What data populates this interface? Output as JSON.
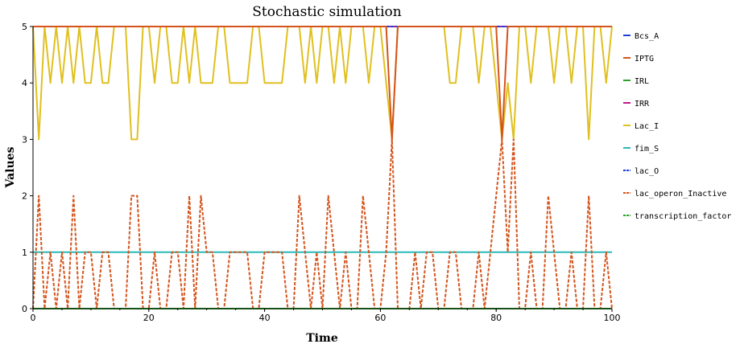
{
  "chart_data": {
    "type": "line",
    "title": "Stochastic simulation",
    "xlabel": "Time",
    "ylabel": "Values",
    "xlim": [
      0,
      100
    ],
    "ylim": [
      0,
      5
    ],
    "xticks": [
      0,
      20,
      40,
      60,
      80,
      100
    ],
    "yticks": [
      0,
      1,
      2,
      3,
      4,
      5
    ],
    "grid": false,
    "legend_position": "right",
    "x": [
      0,
      1,
      2,
      3,
      4,
      5,
      6,
      7,
      8,
      9,
      10,
      11,
      12,
      13,
      14,
      15,
      16,
      17,
      18,
      19,
      20,
      21,
      22,
      23,
      24,
      25,
      26,
      27,
      28,
      29,
      30,
      31,
      32,
      33,
      34,
      35,
      36,
      37,
      38,
      39,
      40,
      41,
      42,
      43,
      44,
      45,
      46,
      47,
      48,
      49,
      50,
      51,
      52,
      53,
      54,
      55,
      56,
      57,
      58,
      59,
      60,
      61,
      62,
      63,
      64,
      65,
      66,
      67,
      68,
      69,
      70,
      71,
      72,
      73,
      74,
      75,
      76,
      77,
      78,
      79,
      80,
      81,
      82,
      83,
      84,
      85,
      86,
      87,
      88,
      89,
      90,
      91,
      92,
      93,
      94,
      95,
      96,
      97,
      98,
      99,
      100
    ],
    "series": [
      {
        "name": "Bcs_A",
        "color": "#1f3fd6",
        "dash": "solid",
        "values": [
          5,
          5,
          5,
          5,
          5,
          5,
          5,
          5,
          5,
          5,
          5,
          5,
          5,
          5,
          5,
          5,
          5,
          5,
          5,
          5,
          5,
          5,
          5,
          5,
          5,
          5,
          5,
          5,
          5,
          5,
          5,
          5,
          5,
          5,
          5,
          5,
          5,
          5,
          5,
          5,
          5,
          5,
          5,
          5,
          5,
          5,
          5,
          5,
          5,
          5,
          5,
          5,
          5,
          5,
          5,
          5,
          5,
          5,
          5,
          5,
          5,
          5,
          5,
          5,
          5,
          5,
          5,
          5,
          5,
          5,
          5,
          5,
          5,
          5,
          5,
          5,
          5,
          5,
          5,
          5,
          5,
          5,
          5,
          5,
          5,
          5,
          5,
          5,
          5,
          5,
          5,
          5,
          5,
          5,
          5,
          5,
          5,
          5,
          5,
          5,
          5
        ]
      },
      {
        "name": "IPTG",
        "color": "#d4541c",
        "dash": "solid",
        "values": [
          5,
          5,
          5,
          5,
          5,
          5,
          5,
          5,
          5,
          5,
          5,
          5,
          5,
          5,
          5,
          5,
          5,
          5,
          5,
          5,
          5,
          5,
          5,
          5,
          5,
          5,
          5,
          5,
          5,
          5,
          5,
          5,
          5,
          5,
          5,
          5,
          5,
          5,
          5,
          5,
          5,
          5,
          5,
          5,
          5,
          5,
          5,
          5,
          5,
          5,
          5,
          5,
          5,
          5,
          5,
          5,
          5,
          5,
          5,
          5,
          5,
          5,
          3,
          5,
          5,
          5,
          5,
          5,
          5,
          5,
          5,
          5,
          5,
          5,
          5,
          5,
          5,
          5,
          5,
          5,
          5,
          3,
          5,
          5,
          5,
          5,
          5,
          5,
          5,
          5,
          5,
          5,
          5,
          5,
          5,
          5,
          5,
          5,
          5,
          5,
          5
        ]
      },
      {
        "name": "IRL",
        "color": "#2ca02c",
        "dash": "solid",
        "values": [
          0,
          0,
          0,
          0,
          0,
          0,
          0,
          0,
          0,
          0,
          0,
          0,
          0,
          0,
          0,
          0,
          0,
          0,
          0,
          0,
          0,
          0,
          0,
          0,
          0,
          0,
          0,
          0,
          0,
          0,
          0,
          0,
          0,
          0,
          0,
          0,
          0,
          0,
          0,
          0,
          0,
          0,
          0,
          0,
          0,
          0,
          0,
          0,
          0,
          0,
          0,
          0,
          0,
          0,
          0,
          0,
          0,
          0,
          0,
          0,
          0,
          0,
          0,
          0,
          0,
          0,
          0,
          0,
          0,
          0,
          0,
          0,
          0,
          0,
          0,
          0,
          0,
          0,
          0,
          0,
          0,
          0,
          0,
          0,
          0,
          0,
          0,
          0,
          0,
          0,
          0,
          0,
          0,
          0,
          0,
          0,
          0,
          0,
          0,
          0,
          0
        ]
      },
      {
        "name": "IRR",
        "color": "#c2188f",
        "dash": "solid",
        "values": [
          5,
          5,
          5,
          5,
          5,
          5,
          5,
          5,
          5,
          5,
          5,
          5,
          5,
          5,
          5,
          5,
          5,
          5,
          5,
          5,
          5,
          5,
          5,
          5,
          5,
          5,
          5,
          5,
          5,
          5,
          5,
          5,
          5,
          5,
          5,
          5,
          5,
          5,
          5,
          5,
          5,
          5,
          5,
          5,
          5,
          5,
          5,
          5,
          5,
          5,
          5,
          5,
          5,
          5,
          5,
          5,
          5,
          5,
          5,
          5,
          5,
          5,
          5,
          5,
          5,
          5,
          5,
          5,
          5,
          5,
          5,
          5,
          5,
          5,
          5,
          5,
          5,
          5,
          5,
          5,
          5,
          5,
          5,
          5,
          5,
          5,
          5,
          5,
          5,
          5,
          5,
          5,
          5,
          5,
          5,
          5,
          5,
          5,
          5,
          5,
          5
        ]
      },
      {
        "name": "Lac_I",
        "color": "#e0c020",
        "dash": "solid",
        "values": [
          5,
          3,
          5,
          4,
          5,
          4,
          5,
          4,
          5,
          4,
          4,
          5,
          4,
          4,
          5,
          5,
          5,
          3,
          3,
          5,
          5,
          4,
          5,
          5,
          4,
          4,
          5,
          4,
          5,
          4,
          4,
          4,
          5,
          5,
          4,
          4,
          4,
          4,
          5,
          5,
          4,
          4,
          4,
          4,
          5,
          5,
          5,
          4,
          5,
          4,
          5,
          5,
          4,
          5,
          4,
          5,
          5,
          5,
          4,
          5,
          5,
          4,
          3,
          5,
          5,
          5,
          5,
          5,
          5,
          5,
          5,
          5,
          4,
          4,
          5,
          5,
          5,
          4,
          5,
          5,
          4,
          3,
          4,
          3,
          5,
          5,
          4,
          5,
          5,
          5,
          4,
          5,
          5,
          4,
          5,
          5,
          3,
          5,
          5,
          4,
          5
        ]
      },
      {
        "name": "fim_S",
        "color": "#2ab8b8",
        "dash": "solid",
        "values": [
          1,
          1,
          1,
          1,
          1,
          1,
          1,
          1,
          1,
          1,
          1,
          1,
          1,
          1,
          1,
          1,
          1,
          1,
          1,
          1,
          1,
          1,
          1,
          1,
          1,
          1,
          1,
          1,
          1,
          1,
          1,
          1,
          1,
          1,
          1,
          1,
          1,
          1,
          1,
          1,
          1,
          1,
          1,
          1,
          1,
          1,
          1,
          1,
          1,
          1,
          1,
          1,
          1,
          1,
          1,
          1,
          1,
          1,
          1,
          1,
          1,
          1,
          1,
          1,
          1,
          1,
          1,
          1,
          1,
          1,
          1,
          1,
          1,
          1,
          1,
          1,
          1,
          1,
          1,
          1,
          1,
          1,
          1,
          1,
          1,
          1,
          1,
          1,
          1,
          1,
          1,
          1,
          1,
          1,
          1,
          1,
          1,
          1,
          1,
          1,
          1
        ]
      },
      {
        "name": "lac_O",
        "color": "#1f3fd6",
        "dash": "dashed",
        "values": [
          5,
          5,
          5,
          5,
          5,
          5,
          5,
          5,
          5,
          5,
          5,
          5,
          5,
          5,
          5,
          5,
          5,
          5,
          5,
          5,
          5,
          5,
          5,
          5,
          5,
          5,
          5,
          5,
          5,
          5,
          5,
          5,
          5,
          5,
          5,
          5,
          5,
          5,
          5,
          5,
          5,
          5,
          5,
          5,
          5,
          5,
          5,
          5,
          5,
          5,
          5,
          5,
          5,
          5,
          5,
          5,
          5,
          5,
          5,
          5,
          5,
          5,
          5,
          5,
          5,
          5,
          5,
          5,
          5,
          5,
          5,
          5,
          5,
          5,
          5,
          5,
          5,
          5,
          5,
          5,
          5,
          5,
          5,
          5,
          5,
          5,
          5,
          5,
          5,
          5,
          5,
          5,
          5,
          5,
          5,
          5,
          5,
          5,
          5,
          5,
          5
        ]
      },
      {
        "name": "lac_operon_Inactive",
        "color": "#d4541c",
        "dash": "dashed",
        "values": [
          0,
          2,
          0,
          1,
          0,
          1,
          0,
          2,
          0,
          1,
          1,
          0,
          1,
          1,
          0,
          0,
          0,
          2,
          2,
          0,
          0,
          1,
          0,
          0,
          1,
          1,
          0,
          2,
          0,
          2,
          1,
          1,
          0,
          0,
          1,
          1,
          1,
          1,
          0,
          0,
          1,
          1,
          1,
          1,
          0,
          0,
          2,
          1,
          0,
          1,
          0,
          2,
          1,
          0,
          1,
          0,
          0,
          2,
          1,
          0,
          0,
          1,
          3,
          0,
          0,
          0,
          1,
          0,
          1,
          1,
          0,
          0,
          1,
          1,
          0,
          0,
          0,
          1,
          0,
          1,
          2,
          3,
          1,
          3,
          0,
          0,
          1,
          0,
          0,
          2,
          1,
          0,
          0,
          1,
          0,
          0,
          2,
          0,
          0,
          1,
          0
        ]
      },
      {
        "name": "transcription_factor",
        "color": "#2ca02c",
        "dash": "dashed",
        "values": [
          0,
          0,
          0,
          0,
          0,
          0,
          0,
          0,
          0,
          0,
          0,
          0,
          0,
          0,
          0,
          0,
          0,
          0,
          0,
          0,
          0,
          0,
          0,
          0,
          0,
          0,
          0,
          0,
          0,
          0,
          0,
          0,
          0,
          0,
          0,
          0,
          0,
          0,
          0,
          0,
          0,
          0,
          0,
          0,
          0,
          0,
          0,
          0,
          0,
          0,
          0,
          0,
          0,
          0,
          0,
          0,
          0,
          0,
          0,
          0,
          0,
          0,
          0,
          0,
          0,
          0,
          0,
          0,
          0,
          0,
          0,
          0,
          0,
          0,
          0,
          0,
          0,
          0,
          0,
          0,
          0,
          0,
          0,
          0,
          0,
          0,
          0,
          0,
          0,
          0,
          0,
          0,
          0,
          0,
          0,
          0,
          0,
          0,
          0,
          0,
          0
        ]
      }
    ]
  }
}
